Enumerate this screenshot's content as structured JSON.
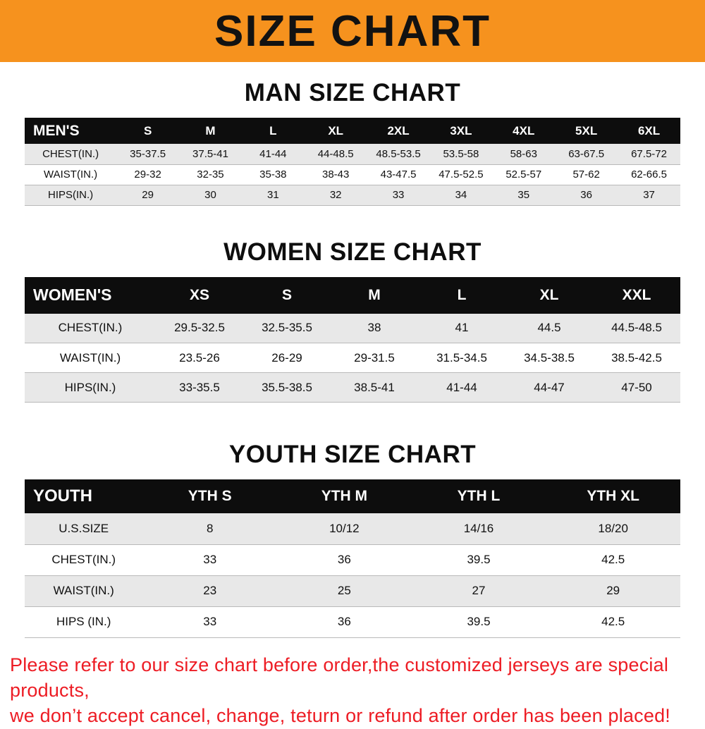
{
  "banner": {
    "title": "SIZE CHART"
  },
  "man": {
    "heading": "MAN SIZE CHART",
    "label": "MEN'S",
    "cols": [
      "S",
      "M",
      "L",
      "XL",
      "2XL",
      "3XL",
      "4XL",
      "5XL",
      "6XL"
    ],
    "rows": [
      {
        "label": "CHEST(IN.)",
        "values": [
          "35-37.5",
          "37.5-41",
          "41-44",
          "44-48.5",
          "48.5-53.5",
          "53.5-58",
          "58-63",
          "63-67.5",
          "67.5-72"
        ]
      },
      {
        "label": "WAIST(IN.)",
        "values": [
          "29-32",
          "32-35",
          "35-38",
          "38-43",
          "43-47.5",
          "47.5-52.5",
          "52.5-57",
          "57-62",
          "62-66.5"
        ]
      },
      {
        "label": "HIPS(IN.)",
        "values": [
          "29",
          "30",
          "31",
          "32",
          "33",
          "34",
          "35",
          "36",
          "37"
        ]
      }
    ]
  },
  "women": {
    "heading": "WOMEN SIZE CHART",
    "label": "WOMEN'S",
    "cols": [
      "XS",
      "S",
      "M",
      "L",
      "XL",
      "XXL"
    ],
    "rows": [
      {
        "label": "CHEST(IN.)",
        "values": [
          "29.5-32.5",
          "32.5-35.5",
          "38",
          "41",
          "44.5",
          "44.5-48.5"
        ]
      },
      {
        "label": "WAIST(IN.)",
        "values": [
          "23.5-26",
          "26-29",
          "29-31.5",
          "31.5-34.5",
          "34.5-38.5",
          "38.5-42.5"
        ]
      },
      {
        "label": "HIPS(IN.)",
        "values": [
          "33-35.5",
          "35.5-38.5",
          "38.5-41",
          "41-44",
          "44-47",
          "47-50"
        ]
      }
    ]
  },
  "youth": {
    "heading": "YOUTH SIZE CHART",
    "label": "YOUTH",
    "cols": [
      "YTH S",
      "YTH M",
      "YTH L",
      "YTH XL"
    ],
    "rows": [
      {
        "label": "U.S.SIZE",
        "values": [
          "8",
          "10/12",
          "14/16",
          "18/20"
        ]
      },
      {
        "label": "CHEST(IN.)",
        "values": [
          "33",
          "36",
          "39.5",
          "42.5"
        ]
      },
      {
        "label": "WAIST(IN.)",
        "values": [
          "23",
          "25",
          "27",
          "29"
        ]
      },
      {
        "label": "HIPS (IN.)",
        "values": [
          "33",
          "36",
          "39.5",
          "42.5"
        ]
      }
    ]
  },
  "footer": {
    "line1": "Please refer to our size chart before order,the customized jerseys are special products,",
    "line2": "we don’t accept cancel, change, teturn or refund after order has been placed!"
  },
  "colors": {
    "banner_bg": "#f6921e",
    "table_header_bg": "#0d0d0d",
    "row_alt_bg": "#e8e8e8",
    "footer_text": "#ed1c24"
  }
}
